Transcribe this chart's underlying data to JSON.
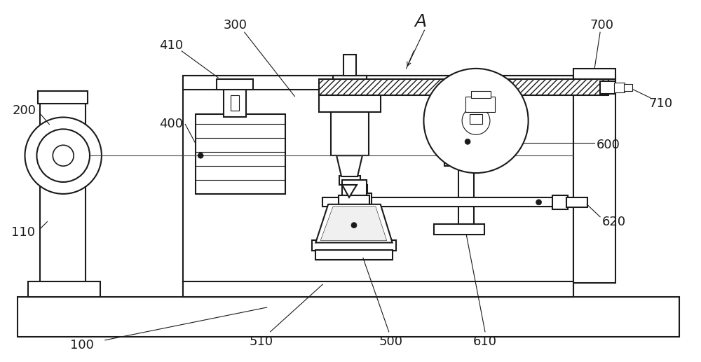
{
  "fig_width": 10.0,
  "fig_height": 5.17,
  "dpi": 100,
  "bg_color": "#ffffff",
  "line_color": "#1a1a1a"
}
